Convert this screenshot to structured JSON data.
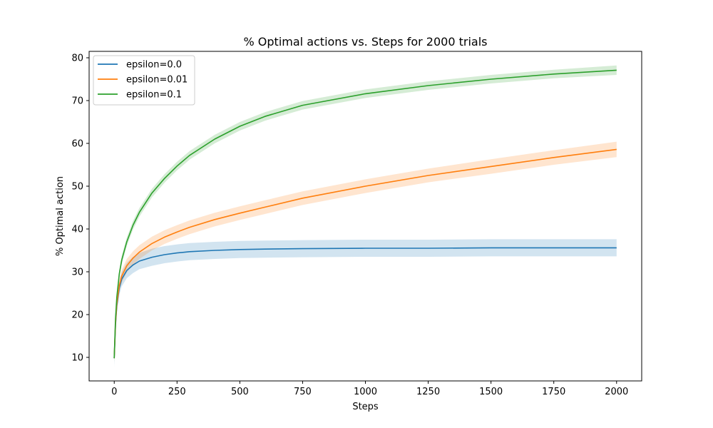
{
  "chart_data": {
    "type": "line",
    "title": "% Optimal actions vs. Steps for 2000 trials",
    "xlabel": "Steps",
    "ylabel": "% Optimal action",
    "xlim": [
      -100,
      2100
    ],
    "ylim": [
      4.5,
      81.5
    ],
    "xticks": [
      0,
      250,
      500,
      750,
      1000,
      1250,
      1500,
      1750,
      2000
    ],
    "yticks": [
      10,
      20,
      30,
      40,
      50,
      60,
      70,
      80
    ],
    "grid": false,
    "legend_position": "top-left",
    "series": [
      {
        "name": "epsilon=0.0",
        "color": "#1f77b4",
        "x": [
          0,
          5,
          10,
          20,
          30,
          50,
          75,
          100,
          150,
          200,
          250,
          300,
          400,
          500,
          600,
          750,
          1000,
          1250,
          1500,
          1750,
          2000
        ],
        "y": [
          9.8,
          17.5,
          22.0,
          26.2,
          28.3,
          30.3,
          31.6,
          32.5,
          33.4,
          34.0,
          34.4,
          34.7,
          35.0,
          35.2,
          35.3,
          35.4,
          35.5,
          35.5,
          35.6,
          35.6,
          35.6
        ],
        "band": [
          2.0,
          1.6,
          1.6,
          1.6,
          1.7,
          1.8,
          1.9,
          1.9,
          2.0,
          2.0,
          2.0,
          2.0,
          2.0,
          2.0,
          2.0,
          2.0,
          2.0,
          2.0,
          2.0,
          2.0,
          2.0
        ]
      },
      {
        "name": "epsilon=0.01",
        "color": "#ff7f0e",
        "x": [
          0,
          5,
          10,
          20,
          30,
          50,
          75,
          100,
          150,
          200,
          250,
          300,
          400,
          500,
          600,
          750,
          1000,
          1250,
          1500,
          1750,
          2000
        ],
        "y": [
          9.8,
          18.0,
          22.5,
          26.8,
          29.0,
          31.4,
          33.2,
          34.6,
          36.6,
          38.1,
          39.3,
          40.4,
          42.2,
          43.7,
          45.1,
          47.2,
          50.0,
          52.5,
          54.6,
          56.7,
          58.6
        ],
        "band": [
          1.0,
          1.2,
          1.3,
          1.4,
          1.5,
          1.6,
          1.6,
          1.6,
          1.6,
          1.6,
          1.6,
          1.6,
          1.6,
          1.6,
          1.6,
          1.6,
          1.6,
          1.6,
          1.7,
          1.7,
          1.8
        ]
      },
      {
        "name": "epsilon=0.1",
        "color": "#2ca02c",
        "x": [
          0,
          5,
          10,
          20,
          30,
          50,
          75,
          100,
          150,
          200,
          250,
          300,
          400,
          500,
          600,
          750,
          1000,
          1250,
          1500,
          1750,
          2000
        ],
        "y": [
          9.8,
          19.0,
          24.0,
          29.5,
          32.8,
          37.0,
          40.9,
          43.9,
          48.4,
          51.8,
          54.7,
          57.2,
          61.0,
          64.0,
          66.3,
          68.9,
          71.6,
          73.5,
          75.0,
          76.2,
          77.1
        ],
        "band": [
          1.0,
          1.0,
          1.0,
          1.0,
          1.0,
          1.0,
          1.0,
          1.0,
          1.0,
          1.0,
          1.0,
          1.0,
          1.0,
          1.0,
          1.0,
          1.0,
          1.0,
          1.0,
          1.0,
          1.0,
          1.1
        ]
      }
    ]
  }
}
